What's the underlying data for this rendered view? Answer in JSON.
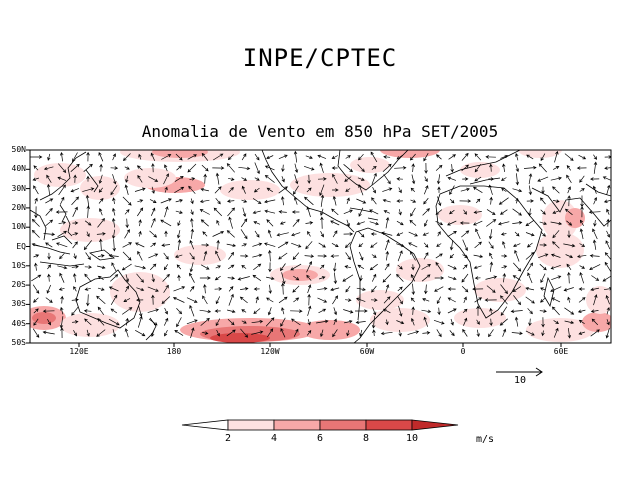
{
  "header": {
    "title": "INPE/CPTEC"
  },
  "map": {
    "title": "Anomalia de Vento em 850 hPa SET/2005",
    "lat_labels": [
      "50N",
      "40N",
      "30N",
      "20N",
      "10N",
      "EQ",
      "10S",
      "20S",
      "30S",
      "40S",
      "50S"
    ],
    "lon_labels": [
      "120E",
      "180",
      "120W",
      "60W",
      "0",
      "60E"
    ],
    "reference_vector": {
      "label": "10"
    }
  },
  "colorbar": {
    "ticks": [
      "2",
      "4",
      "6",
      "8",
      "10"
    ],
    "unit": "m/s",
    "colors": [
      "#ffffff",
      "#fde0e0",
      "#f7a8a8",
      "#e87676",
      "#d94848",
      "#c02a2a"
    ]
  }
}
